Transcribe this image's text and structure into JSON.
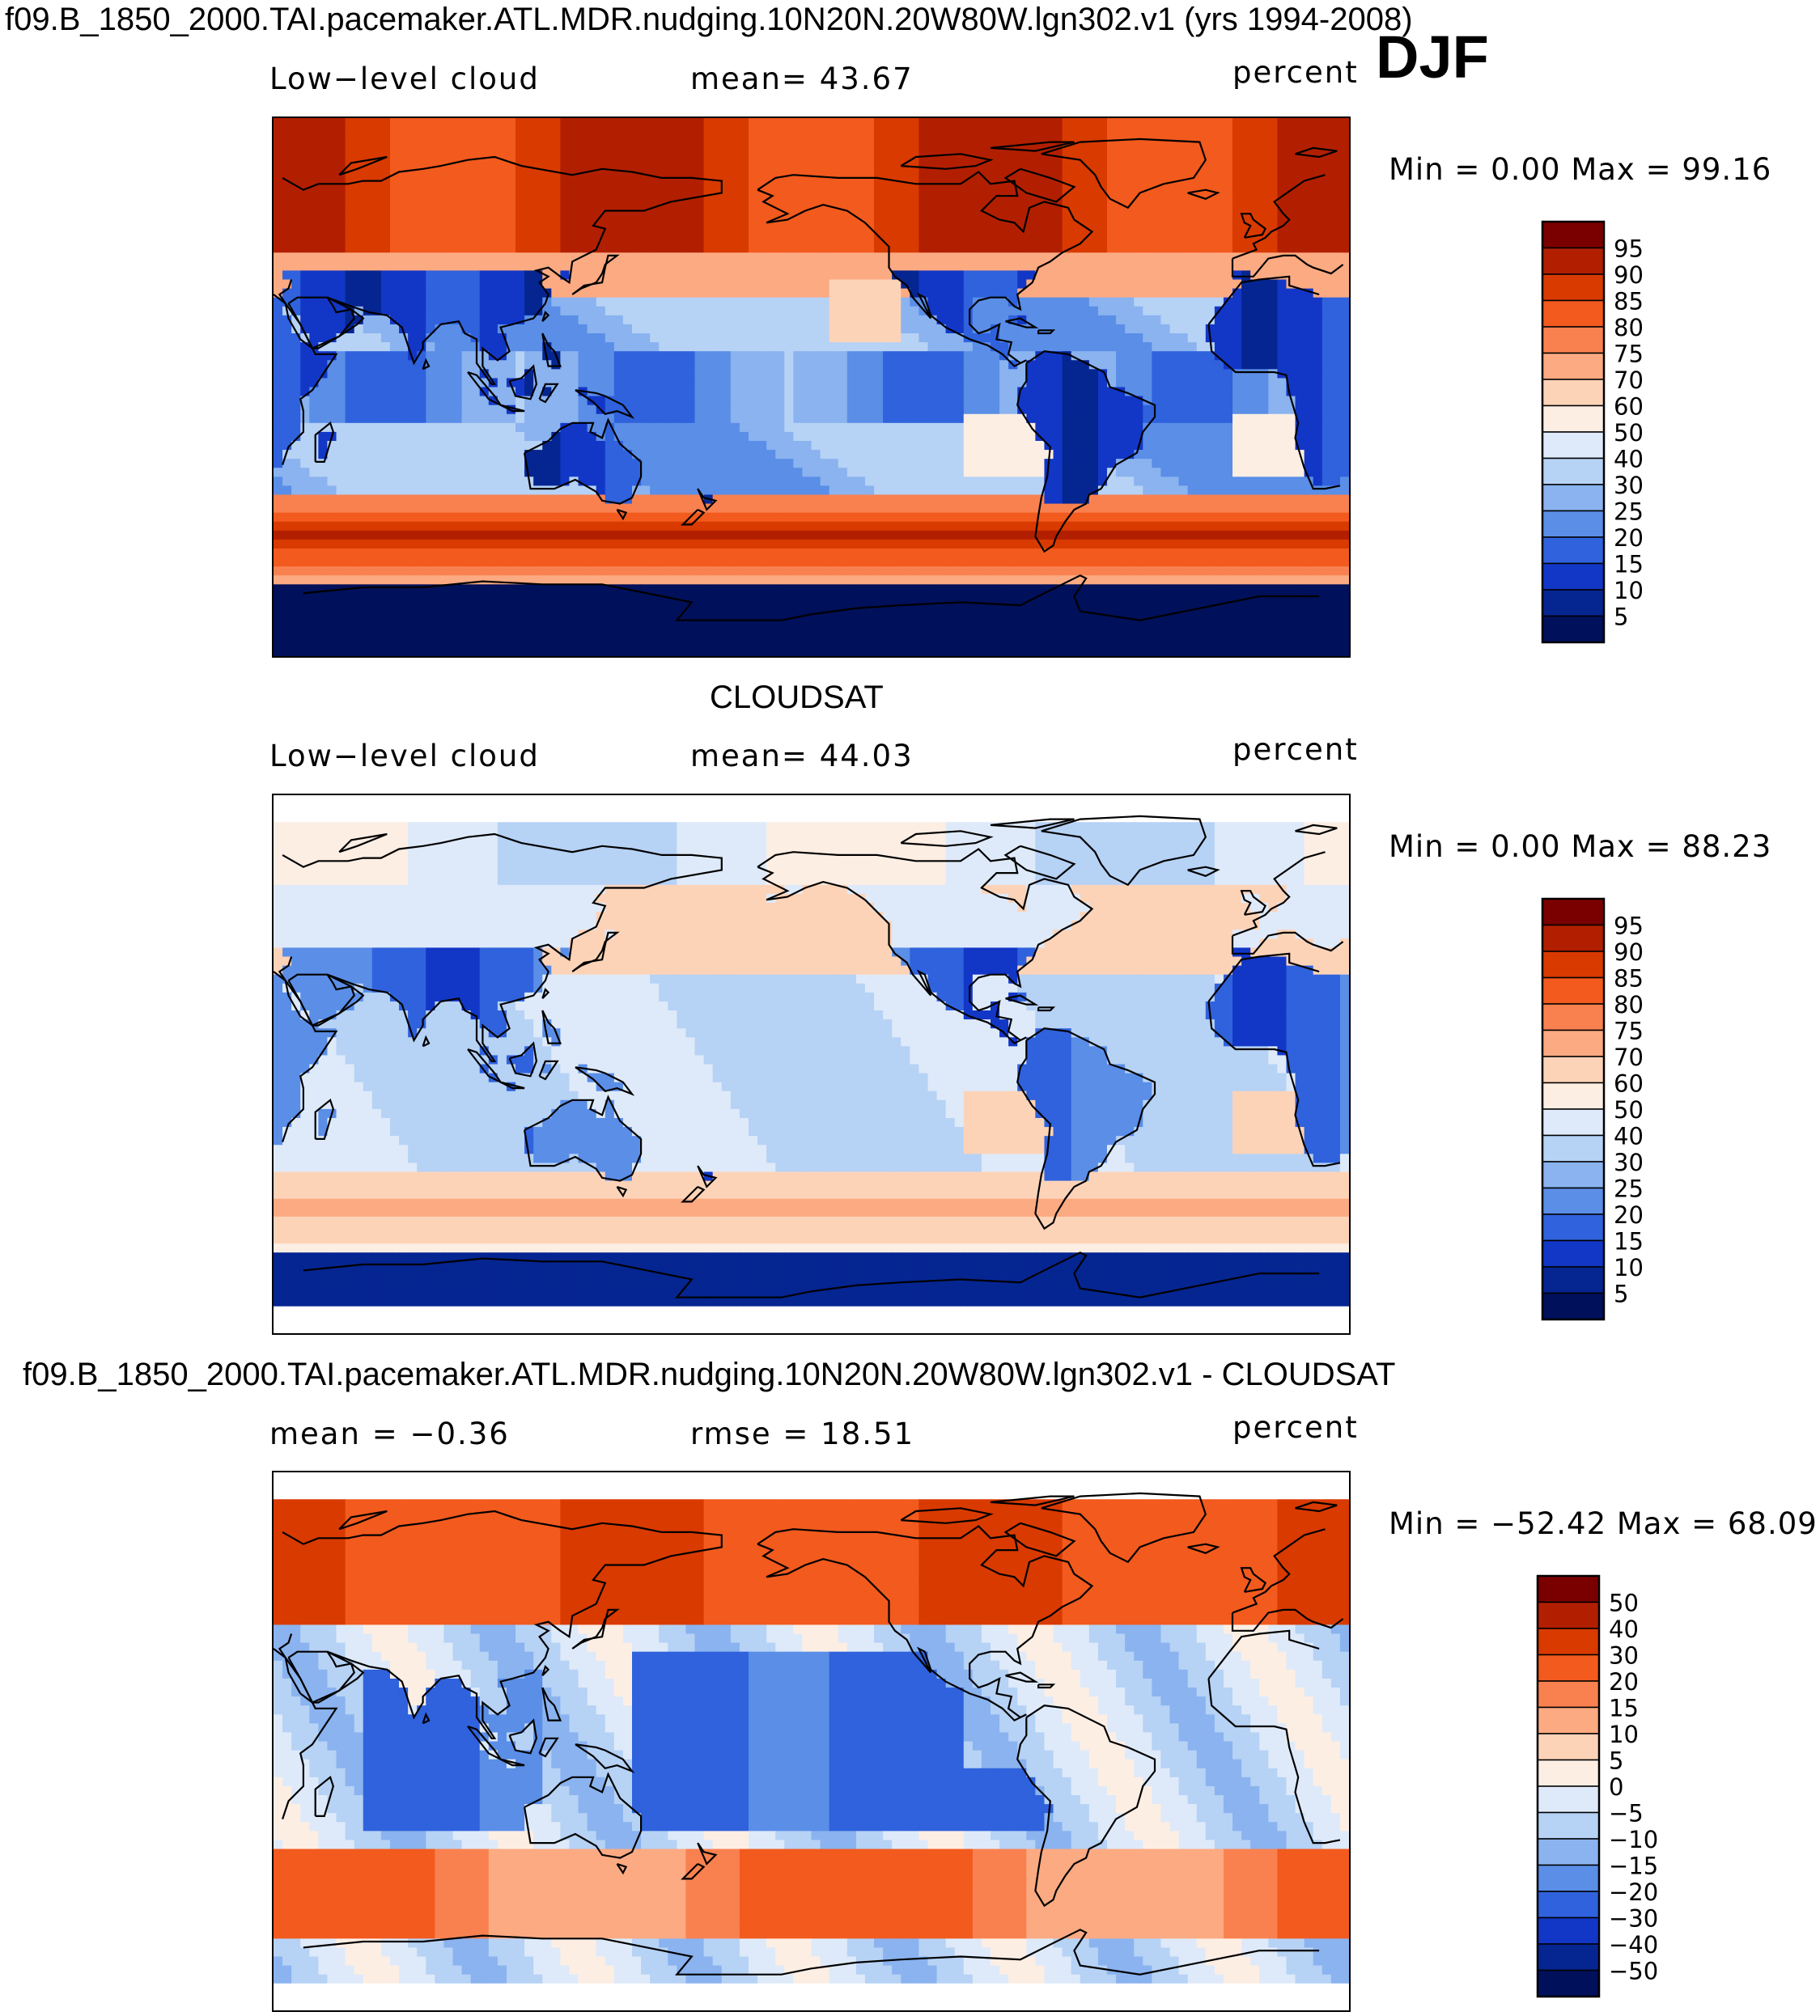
{
  "header": {
    "title": "f09.B_1850_2000.TAI.pacemaker.ATL.MDR.nudging.10N20N.20W80W.lgn302.v1 (yrs 1994-2008)",
    "season": "DJF"
  },
  "panels": [
    {
      "id": "model",
      "label": "Low−level cloud",
      "stat": "mean=   43.67",
      "units": "percent",
      "minmax": "Min  =     0.00  Max  =    99.16",
      "scale": [
        "95",
        "90",
        "85",
        "80",
        "75",
        "70",
        "60",
        "50",
        "40",
        "30",
        "25",
        "20",
        "15",
        "10",
        "5"
      ],
      "colors": [
        "#7a0000",
        "#b21f00",
        "#d93a00",
        "#f25a1e",
        "#f98150",
        "#fcaa82",
        "#fdd3b8",
        "#fdeee4",
        "#deeaf9",
        "#b6d2f5",
        "#8ab3ef",
        "#5a8ee7",
        "#2f62dc",
        "#1237c6",
        "#052591",
        "#00105a"
      ],
      "pattern": "model"
    },
    {
      "id": "obs",
      "title": "CLOUDSAT",
      "label": "Low−level cloud",
      "stat": "mean=   44.03",
      "units": "percent",
      "minmax": "Min  =     0.00  Max  =    88.23",
      "scale": [
        "95",
        "90",
        "85",
        "80",
        "75",
        "70",
        "60",
        "50",
        "40",
        "30",
        "25",
        "20",
        "15",
        "10",
        "5"
      ],
      "colors": [
        "#7a0000",
        "#b21f00",
        "#d93a00",
        "#f25a1e",
        "#f98150",
        "#fcaa82",
        "#fdd3b8",
        "#fdeee4",
        "#deeaf9",
        "#b6d2f5",
        "#8ab3ef",
        "#5a8ee7",
        "#2f62dc",
        "#1237c6",
        "#052591",
        "#00105a"
      ],
      "pattern": "obs"
    },
    {
      "id": "diff",
      "title": "f09.B_1850_2000.TAI.pacemaker.ATL.MDR.nudging.10N20N.20W80W.lgn302.v1 - CLOUDSAT",
      "label": "mean  =   −0.36",
      "stat": "rmse  =    18.51",
      "units": "percent",
      "minmax": "Min  = −52.42  Max  =    68.09",
      "scale": [
        "50",
        "40",
        "30",
        "20",
        "15",
        "10",
        "5",
        "0",
        "−5",
        "−10",
        "−15",
        "−20",
        "−30",
        "−40",
        "−50"
      ],
      "colors": [
        "#7a0000",
        "#b21f00",
        "#d93a00",
        "#f25a1e",
        "#f98150",
        "#fcaa82",
        "#fdd3b8",
        "#fdeee4",
        "#deeaf9",
        "#b6d2f5",
        "#8ab3ef",
        "#5a8ee7",
        "#2f62dc",
        "#1237c6",
        "#052591",
        "#00105a"
      ],
      "pattern": "diff"
    }
  ]
}
